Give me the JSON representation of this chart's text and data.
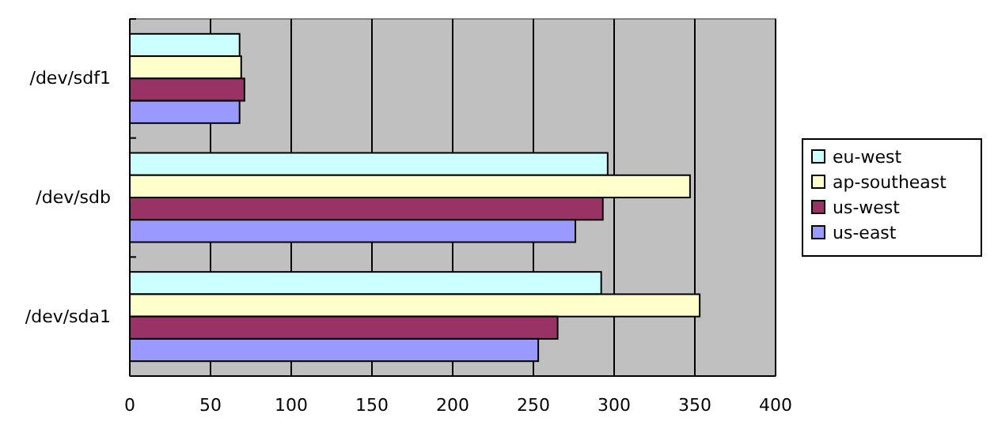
{
  "chart_data": {
    "type": "bar",
    "orientation": "horizontal",
    "categories": [
      "/dev/sdf1",
      "/dev/sdb",
      "/dev/sda1"
    ],
    "series": [
      {
        "name": "eu-west",
        "color": "#ccffff",
        "values": [
          68,
          296,
          292
        ]
      },
      {
        "name": "ap-southeast",
        "color": "#ffffcc",
        "values": [
          69,
          347,
          353
        ]
      },
      {
        "name": "us-west",
        "color": "#993366",
        "values": [
          71,
          293,
          265
        ]
      },
      {
        "name": "us-east",
        "color": "#9999ff",
        "values": [
          68,
          276,
          253
        ]
      }
    ],
    "xlim": [
      0,
      400
    ],
    "xticks": [
      0,
      50,
      100,
      150,
      200,
      250,
      300,
      350,
      400
    ],
    "grid": "x",
    "legend": "right"
  }
}
